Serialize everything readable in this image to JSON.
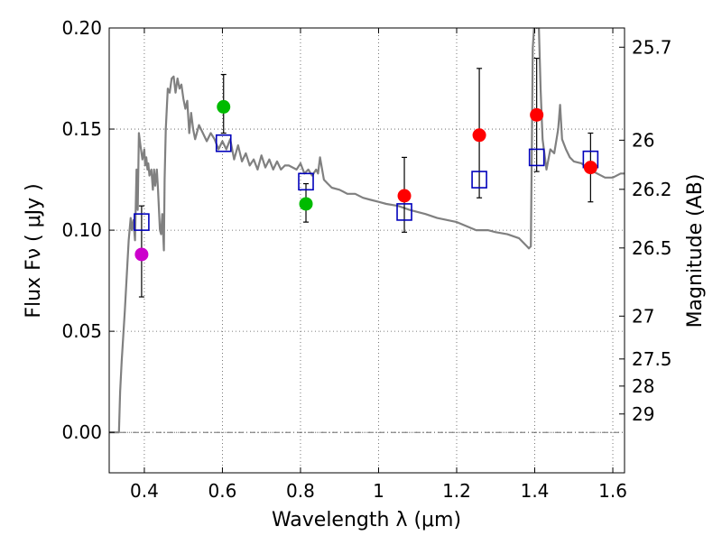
{
  "chart_data": {
    "type": "scatter",
    "xlabel": "Wavelength  λ (μm)",
    "ylabel_left": "Flux  Fν  ( μJy )",
    "ylabel_right": "Magnitude (AB)",
    "xlim": [
      0.31,
      1.63
    ],
    "ylim": [
      -0.02,
      0.2
    ],
    "grid": true,
    "x_ticks": [
      0.4,
      0.6,
      0.8,
      1.0,
      1.2,
      1.4,
      1.6
    ],
    "x_tick_labels": [
      "0.4",
      "0.6",
      "0.8",
      "1",
      "1.2",
      "1.4",
      "1.6"
    ],
    "y_ticks": [
      0.0,
      0.05,
      0.1,
      0.15,
      0.2
    ],
    "y_tick_labels": [
      "0.00",
      "0.05",
      "0.10",
      "0.15",
      "0.20"
    ],
    "mag_ticks": [
      {
        "label": "25.7",
        "flux": 0.1905
      },
      {
        "label": "26",
        "flux": 0.1445
      },
      {
        "label": "26.2",
        "flux": 0.1202
      },
      {
        "label": "26.5",
        "flux": 0.0912
      },
      {
        "label": "27",
        "flux": 0.0575
      },
      {
        "label": "27.5",
        "flux": 0.0363
      },
      {
        "label": "28",
        "flux": 0.0229
      },
      {
        "label": "29",
        "flux": 0.0091
      }
    ],
    "observed": [
      {
        "x": 0.393,
        "y": 0.088,
        "err_lo": 0.067,
        "err_hi": 0.112,
        "color": "#cc00cc"
      },
      {
        "x": 0.603,
        "y": 0.161,
        "err_lo": 0.148,
        "err_hi": 0.177,
        "color": "#00bb00"
      },
      {
        "x": 0.814,
        "y": 0.113,
        "err_lo": 0.104,
        "err_hi": 0.123,
        "color": "#00bb00"
      },
      {
        "x": 1.066,
        "y": 0.117,
        "err_lo": 0.099,
        "err_hi": 0.136,
        "color": "#ff0000"
      },
      {
        "x": 1.258,
        "y": 0.147,
        "err_lo": 0.116,
        "err_hi": 0.18,
        "color": "#ff0000"
      },
      {
        "x": 1.405,
        "y": 0.157,
        "err_lo": 0.129,
        "err_hi": 0.185,
        "color": "#ff0000"
      },
      {
        "x": 1.543,
        "y": 0.131,
        "err_lo": 0.114,
        "err_hi": 0.148,
        "color": "#ff0000"
      }
    ],
    "model_points": [
      {
        "x": 0.393,
        "y": 0.104
      },
      {
        "x": 0.603,
        "y": 0.143
      },
      {
        "x": 0.814,
        "y": 0.124
      },
      {
        "x": 1.066,
        "y": 0.109
      },
      {
        "x": 1.258,
        "y": 0.125
      },
      {
        "x": 1.405,
        "y": 0.136
      },
      {
        "x": 1.543,
        "y": 0.135
      }
    ],
    "sed_model": {
      "color": "#808080",
      "x": [
        0.31,
        0.335,
        0.338,
        0.342,
        0.35,
        0.36,
        0.365,
        0.368,
        0.372,
        0.376,
        0.38,
        0.383,
        0.386,
        0.39,
        0.395,
        0.4,
        0.402,
        0.405,
        0.408,
        0.41,
        0.413,
        0.418,
        0.422,
        0.425,
        0.428,
        0.432,
        0.435,
        0.44,
        0.443,
        0.446,
        0.45,
        0.452,
        0.455,
        0.46,
        0.465,
        0.47,
        0.475,
        0.48,
        0.485,
        0.49,
        0.495,
        0.5,
        0.505,
        0.51,
        0.515,
        0.52,
        0.525,
        0.53,
        0.54,
        0.55,
        0.56,
        0.57,
        0.58,
        0.59,
        0.6,
        0.61,
        0.62,
        0.63,
        0.64,
        0.65,
        0.66,
        0.67,
        0.68,
        0.69,
        0.7,
        0.71,
        0.72,
        0.73,
        0.74,
        0.75,
        0.76,
        0.77,
        0.78,
        0.79,
        0.8,
        0.81,
        0.82,
        0.83,
        0.84,
        0.845,
        0.85,
        0.86,
        0.87,
        0.88,
        0.9,
        0.92,
        0.94,
        0.96,
        0.98,
        1.0,
        1.02,
        1.05,
        1.08,
        1.1,
        1.12,
        1.15,
        1.2,
        1.25,
        1.28,
        1.3,
        1.33,
        1.36,
        1.37,
        1.38,
        1.385,
        1.39,
        1.393,
        1.395,
        1.4,
        1.405,
        1.41,
        1.415,
        1.42,
        1.43,
        1.44,
        1.45,
        1.46,
        1.465,
        1.47,
        1.48,
        1.49,
        1.5,
        1.52,
        1.54,
        1.56,
        1.58,
        1.6,
        1.62,
        1.63
      ],
      "y": [
        0.0,
        0.0,
        0.02,
        0.035,
        0.06,
        0.095,
        0.106,
        0.1,
        0.105,
        0.095,
        0.13,
        0.11,
        0.148,
        0.142,
        0.135,
        0.14,
        0.132,
        0.136,
        0.13,
        0.133,
        0.127,
        0.13,
        0.12,
        0.13,
        0.122,
        0.13,
        0.12,
        0.1,
        0.098,
        0.108,
        0.09,
        0.125,
        0.15,
        0.17,
        0.168,
        0.175,
        0.176,
        0.168,
        0.175,
        0.17,
        0.172,
        0.165,
        0.16,
        0.164,
        0.148,
        0.158,
        0.15,
        0.145,
        0.152,
        0.148,
        0.144,
        0.148,
        0.145,
        0.14,
        0.144,
        0.14,
        0.145,
        0.135,
        0.142,
        0.134,
        0.138,
        0.132,
        0.135,
        0.13,
        0.137,
        0.131,
        0.135,
        0.13,
        0.134,
        0.13,
        0.132,
        0.132,
        0.131,
        0.13,
        0.133,
        0.128,
        0.13,
        0.127,
        0.13,
        0.128,
        0.136,
        0.125,
        0.123,
        0.121,
        0.12,
        0.118,
        0.118,
        0.116,
        0.115,
        0.114,
        0.113,
        0.112,
        0.11,
        0.109,
        0.108,
        0.106,
        0.104,
        0.1,
        0.1,
        0.099,
        0.098,
        0.096,
        0.094,
        0.092,
        0.091,
        0.092,
        0.15,
        0.19,
        0.205,
        0.2,
        0.205,
        0.17,
        0.145,
        0.13,
        0.14,
        0.138,
        0.15,
        0.162,
        0.145,
        0.14,
        0.136,
        0.134,
        0.133,
        0.13,
        0.128,
        0.126,
        0.126,
        0.128,
        0.128
      ]
    }
  }
}
